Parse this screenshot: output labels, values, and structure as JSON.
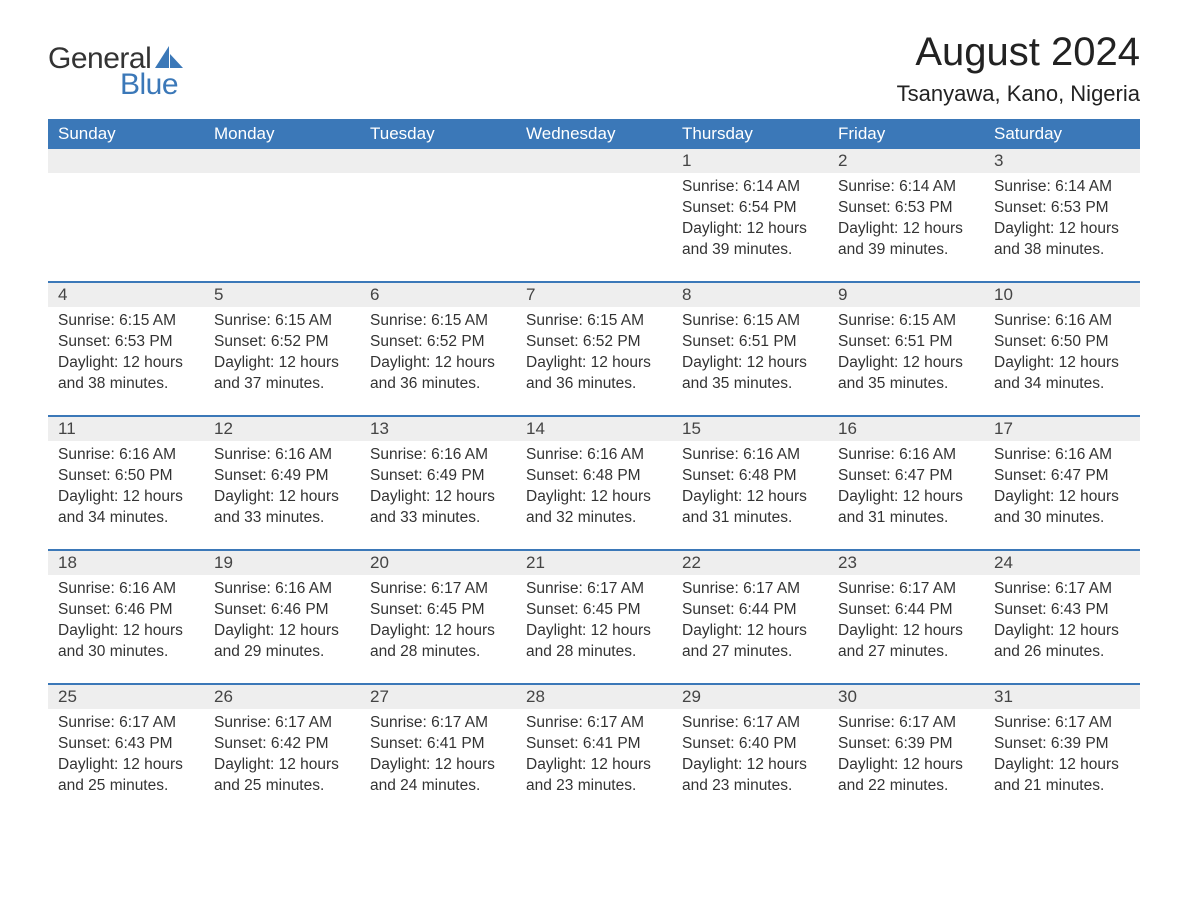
{
  "logo": {
    "text1": "General",
    "text2": "Blue",
    "shape_color": "#3b78b8",
    "text1_color": "#333333"
  },
  "title": "August 2024",
  "location": "Tsanyawa, Kano, Nigeria",
  "colors": {
    "header_bg": "#3b78b8",
    "header_text": "#ffffff",
    "daynum_bg": "#eeeeee",
    "divider": "#3b78b8",
    "body_text": "#333333",
    "background": "#ffffff"
  },
  "fonts": {
    "title_size": 40,
    "location_size": 22,
    "weekday_size": 17,
    "cell_size": 15.5
  },
  "weekdays": [
    "Sunday",
    "Monday",
    "Tuesday",
    "Wednesday",
    "Thursday",
    "Friday",
    "Saturday"
  ],
  "weeks": [
    [
      null,
      null,
      null,
      null,
      {
        "day": "1",
        "sunrise": "Sunrise: 6:14 AM",
        "sunset": "Sunset: 6:54 PM",
        "daylight": "Daylight: 12 hours and 39 minutes."
      },
      {
        "day": "2",
        "sunrise": "Sunrise: 6:14 AM",
        "sunset": "Sunset: 6:53 PM",
        "daylight": "Daylight: 12 hours and 39 minutes."
      },
      {
        "day": "3",
        "sunrise": "Sunrise: 6:14 AM",
        "sunset": "Sunset: 6:53 PM",
        "daylight": "Daylight: 12 hours and 38 minutes."
      }
    ],
    [
      {
        "day": "4",
        "sunrise": "Sunrise: 6:15 AM",
        "sunset": "Sunset: 6:53 PM",
        "daylight": "Daylight: 12 hours and 38 minutes."
      },
      {
        "day": "5",
        "sunrise": "Sunrise: 6:15 AM",
        "sunset": "Sunset: 6:52 PM",
        "daylight": "Daylight: 12 hours and 37 minutes."
      },
      {
        "day": "6",
        "sunrise": "Sunrise: 6:15 AM",
        "sunset": "Sunset: 6:52 PM",
        "daylight": "Daylight: 12 hours and 36 minutes."
      },
      {
        "day": "7",
        "sunrise": "Sunrise: 6:15 AM",
        "sunset": "Sunset: 6:52 PM",
        "daylight": "Daylight: 12 hours and 36 minutes."
      },
      {
        "day": "8",
        "sunrise": "Sunrise: 6:15 AM",
        "sunset": "Sunset: 6:51 PM",
        "daylight": "Daylight: 12 hours and 35 minutes."
      },
      {
        "day": "9",
        "sunrise": "Sunrise: 6:15 AM",
        "sunset": "Sunset: 6:51 PM",
        "daylight": "Daylight: 12 hours and 35 minutes."
      },
      {
        "day": "10",
        "sunrise": "Sunrise: 6:16 AM",
        "sunset": "Sunset: 6:50 PM",
        "daylight": "Daylight: 12 hours and 34 minutes."
      }
    ],
    [
      {
        "day": "11",
        "sunrise": "Sunrise: 6:16 AM",
        "sunset": "Sunset: 6:50 PM",
        "daylight": "Daylight: 12 hours and 34 minutes."
      },
      {
        "day": "12",
        "sunrise": "Sunrise: 6:16 AM",
        "sunset": "Sunset: 6:49 PM",
        "daylight": "Daylight: 12 hours and 33 minutes."
      },
      {
        "day": "13",
        "sunrise": "Sunrise: 6:16 AM",
        "sunset": "Sunset: 6:49 PM",
        "daylight": "Daylight: 12 hours and 33 minutes."
      },
      {
        "day": "14",
        "sunrise": "Sunrise: 6:16 AM",
        "sunset": "Sunset: 6:48 PM",
        "daylight": "Daylight: 12 hours and 32 minutes."
      },
      {
        "day": "15",
        "sunrise": "Sunrise: 6:16 AM",
        "sunset": "Sunset: 6:48 PM",
        "daylight": "Daylight: 12 hours and 31 minutes."
      },
      {
        "day": "16",
        "sunrise": "Sunrise: 6:16 AM",
        "sunset": "Sunset: 6:47 PM",
        "daylight": "Daylight: 12 hours and 31 minutes."
      },
      {
        "day": "17",
        "sunrise": "Sunrise: 6:16 AM",
        "sunset": "Sunset: 6:47 PM",
        "daylight": "Daylight: 12 hours and 30 minutes."
      }
    ],
    [
      {
        "day": "18",
        "sunrise": "Sunrise: 6:16 AM",
        "sunset": "Sunset: 6:46 PM",
        "daylight": "Daylight: 12 hours and 30 minutes."
      },
      {
        "day": "19",
        "sunrise": "Sunrise: 6:16 AM",
        "sunset": "Sunset: 6:46 PM",
        "daylight": "Daylight: 12 hours and 29 minutes."
      },
      {
        "day": "20",
        "sunrise": "Sunrise: 6:17 AM",
        "sunset": "Sunset: 6:45 PM",
        "daylight": "Daylight: 12 hours and 28 minutes."
      },
      {
        "day": "21",
        "sunrise": "Sunrise: 6:17 AM",
        "sunset": "Sunset: 6:45 PM",
        "daylight": "Daylight: 12 hours and 28 minutes."
      },
      {
        "day": "22",
        "sunrise": "Sunrise: 6:17 AM",
        "sunset": "Sunset: 6:44 PM",
        "daylight": "Daylight: 12 hours and 27 minutes."
      },
      {
        "day": "23",
        "sunrise": "Sunrise: 6:17 AM",
        "sunset": "Sunset: 6:44 PM",
        "daylight": "Daylight: 12 hours and 27 minutes."
      },
      {
        "day": "24",
        "sunrise": "Sunrise: 6:17 AM",
        "sunset": "Sunset: 6:43 PM",
        "daylight": "Daylight: 12 hours and 26 minutes."
      }
    ],
    [
      {
        "day": "25",
        "sunrise": "Sunrise: 6:17 AM",
        "sunset": "Sunset: 6:43 PM",
        "daylight": "Daylight: 12 hours and 25 minutes."
      },
      {
        "day": "26",
        "sunrise": "Sunrise: 6:17 AM",
        "sunset": "Sunset: 6:42 PM",
        "daylight": "Daylight: 12 hours and 25 minutes."
      },
      {
        "day": "27",
        "sunrise": "Sunrise: 6:17 AM",
        "sunset": "Sunset: 6:41 PM",
        "daylight": "Daylight: 12 hours and 24 minutes."
      },
      {
        "day": "28",
        "sunrise": "Sunrise: 6:17 AM",
        "sunset": "Sunset: 6:41 PM",
        "daylight": "Daylight: 12 hours and 23 minutes."
      },
      {
        "day": "29",
        "sunrise": "Sunrise: 6:17 AM",
        "sunset": "Sunset: 6:40 PM",
        "daylight": "Daylight: 12 hours and 23 minutes."
      },
      {
        "day": "30",
        "sunrise": "Sunrise: 6:17 AM",
        "sunset": "Sunset: 6:39 PM",
        "daylight": "Daylight: 12 hours and 22 minutes."
      },
      {
        "day": "31",
        "sunrise": "Sunrise: 6:17 AM",
        "sunset": "Sunset: 6:39 PM",
        "daylight": "Daylight: 12 hours and 21 minutes."
      }
    ]
  ]
}
